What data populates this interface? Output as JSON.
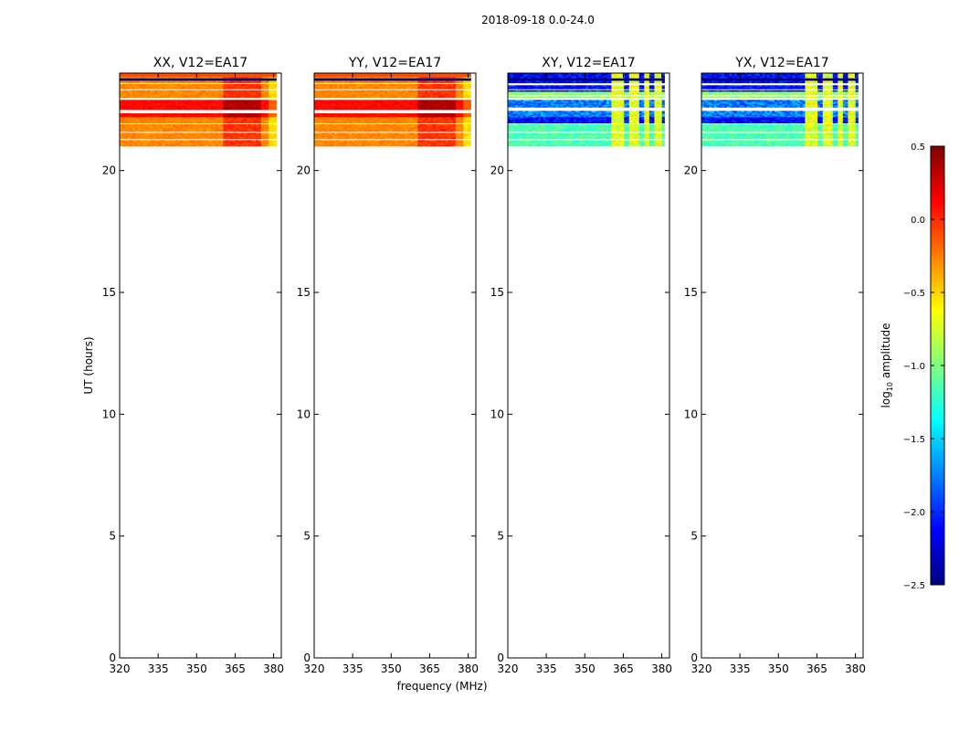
{
  "suptitle": "2018-09-18 0.0-24.0",
  "ylabel": "UT (hours)",
  "xlabel": "frequency (MHz)",
  "colorbar": {
    "label_prefix": "log",
    "label_sub": "10",
    "label_suffix": " amplitude",
    "range": [
      -2.5,
      0.5
    ],
    "ticks": [
      0.5,
      0.0,
      -0.5,
      -1.0,
      -1.5,
      -2.0,
      -2.5
    ],
    "tick_labels": [
      "0.5",
      "0.0",
      "−0.5",
      "−1.0",
      "−1.5",
      "−2.0",
      "−2.5"
    ],
    "colormap": "jet",
    "colors": [
      "#00007f",
      "#0000ff",
      "#007fff",
      "#00ffff",
      "#7fff7f",
      "#ffff00",
      "#ff7f00",
      "#ff0000",
      "#7f0000"
    ]
  },
  "chart_data": [
    {
      "type": "heatmap",
      "title": "XX, V12=EA17",
      "xlim": [
        320,
        383
      ],
      "ylim": [
        0,
        24
      ],
      "xticks": [
        320,
        335,
        350,
        365,
        380
      ],
      "yticks": [
        0,
        5,
        10,
        15,
        20
      ],
      "data_ut_range": [
        21.0,
        24.0
      ],
      "kind": "parallel"
    },
    {
      "type": "heatmap",
      "title": "YY, V12=EA17",
      "xlim": [
        320,
        383
      ],
      "ylim": [
        0,
        24
      ],
      "xticks": [
        320,
        335,
        350,
        365,
        380
      ],
      "yticks": [
        0,
        5,
        10,
        15,
        20
      ],
      "data_ut_range": [
        21.0,
        24.0
      ],
      "kind": "parallel"
    },
    {
      "type": "heatmap",
      "title": "XY, V12=EA17",
      "xlim": [
        320,
        383
      ],
      "ylim": [
        0,
        24
      ],
      "xticks": [
        320,
        335,
        350,
        365,
        380
      ],
      "yticks": [
        0,
        5,
        10,
        15,
        20
      ],
      "data_ut_range": [
        21.0,
        24.0
      ],
      "kind": "cross"
    },
    {
      "type": "heatmap",
      "title": "YX, V12=EA17",
      "xlim": [
        320,
        383
      ],
      "ylim": [
        0,
        24
      ],
      "xticks": [
        320,
        335,
        350,
        365,
        380
      ],
      "yticks": [
        0,
        5,
        10,
        15,
        20
      ],
      "data_ut_range": [
        21.0,
        24.0
      ],
      "kind": "cross"
    }
  ]
}
